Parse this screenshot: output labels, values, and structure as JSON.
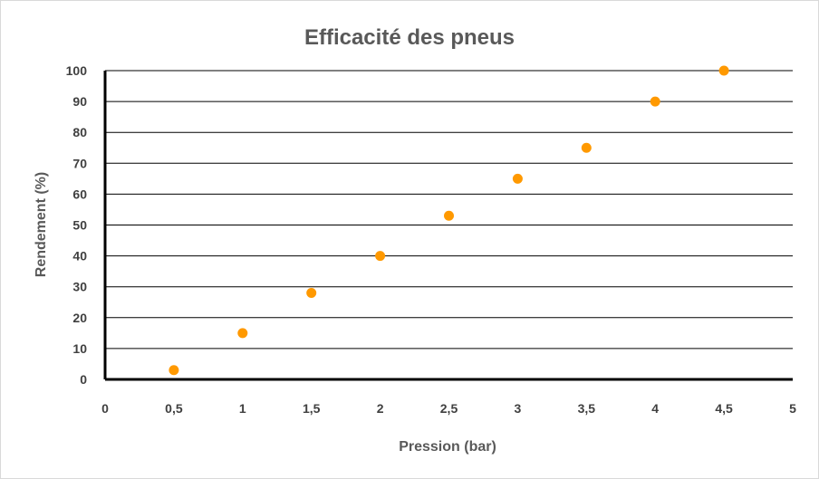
{
  "chart_data": {
    "type": "scatter",
    "title": "Efficacité des pneus",
    "xlabel": "Pression (bar)",
    "ylabel": "Rendement (%)",
    "xlim": [
      0,
      5
    ],
    "ylim": [
      0,
      100
    ],
    "x_ticks": [
      "0",
      "0,5",
      "1",
      "1,5",
      "2",
      "2,5",
      "3",
      "3,5",
      "4",
      "4,5",
      "5"
    ],
    "y_ticks": [
      "0",
      "10",
      "20",
      "30",
      "40",
      "50",
      "60",
      "70",
      "80",
      "90",
      "100"
    ],
    "grid": true,
    "legend": "none",
    "marker_color": "#ff9900",
    "grid_color": "#000000",
    "series": [
      {
        "x": [
          0.5,
          1,
          1.5,
          2,
          2.5,
          3,
          3.5,
          4,
          4.5
        ],
        "y": [
          3,
          15,
          28,
          40,
          53,
          65,
          75,
          90,
          100
        ]
      }
    ]
  }
}
